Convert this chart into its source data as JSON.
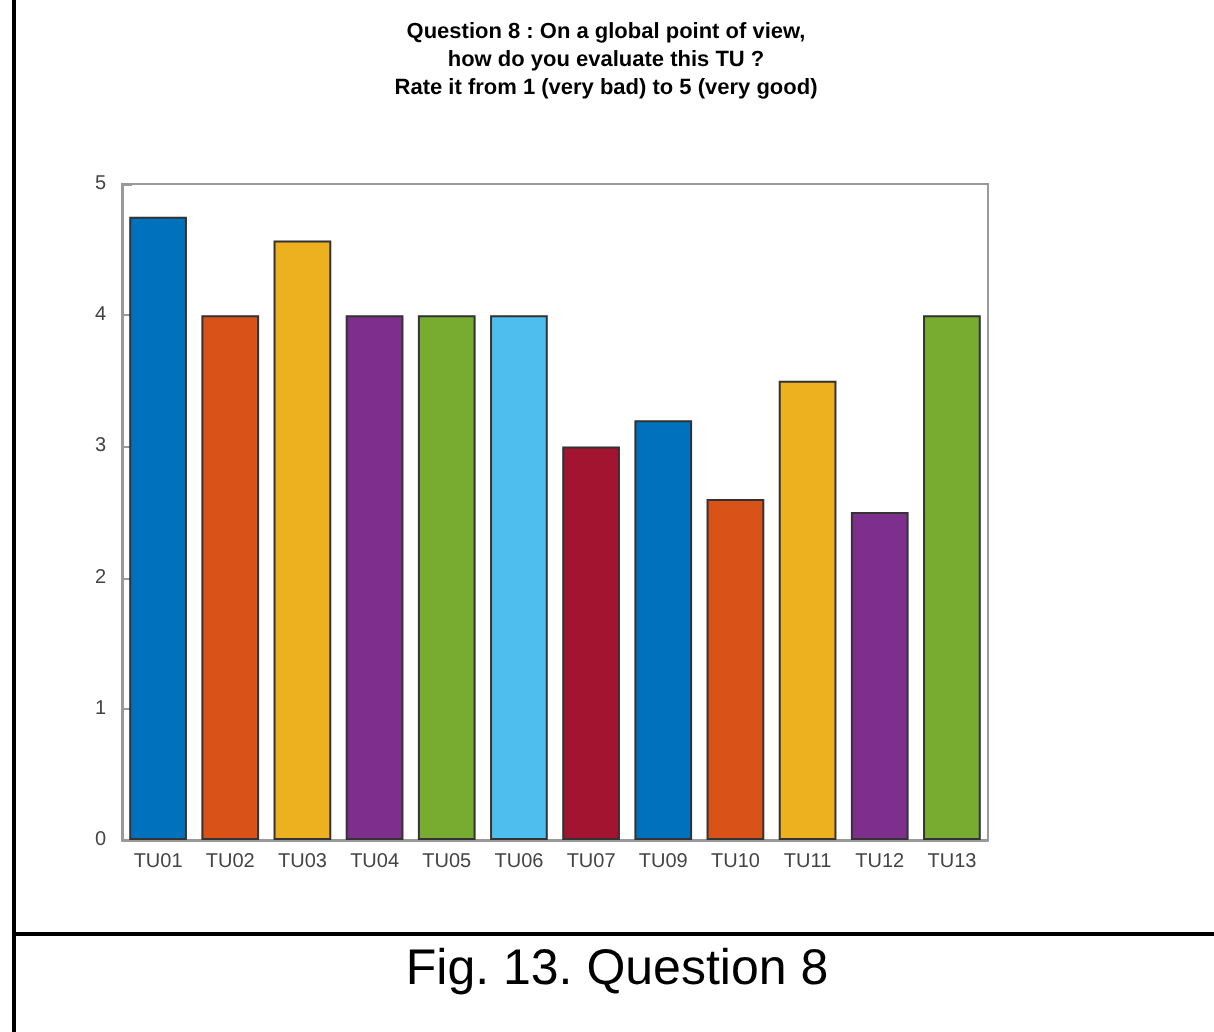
{
  "chart_data": {
    "type": "bar",
    "title": "Question 8 : On a global point of view,\nhow do you evaluate this TU ?\nRate it from 1 (very bad) to 5 (very good)",
    "categories": [
      "TU01",
      "TU02",
      "TU03",
      "TU04",
      "TU05",
      "TU06",
      "TU07",
      "TU09",
      "TU10",
      "TU11",
      "TU12",
      "TU13"
    ],
    "values": [
      4.75,
      4,
      4.57,
      4,
      4,
      4,
      3,
      3.2,
      2.6,
      3.5,
      2.5,
      4
    ],
    "colors": [
      "#0072bd",
      "#d95319",
      "#edb120",
      "#7e2f8e",
      "#77ac30",
      "#4dbeee",
      "#a2142f",
      "#0072bd",
      "#d95319",
      "#edb120",
      "#7e2f8e",
      "#77ac30"
    ],
    "ylim": [
      0,
      5
    ],
    "yticks": [
      0,
      1,
      2,
      3,
      4,
      5
    ],
    "grid": false,
    "annotations": [
      "Fig. 13. Question 8"
    ]
  }
}
